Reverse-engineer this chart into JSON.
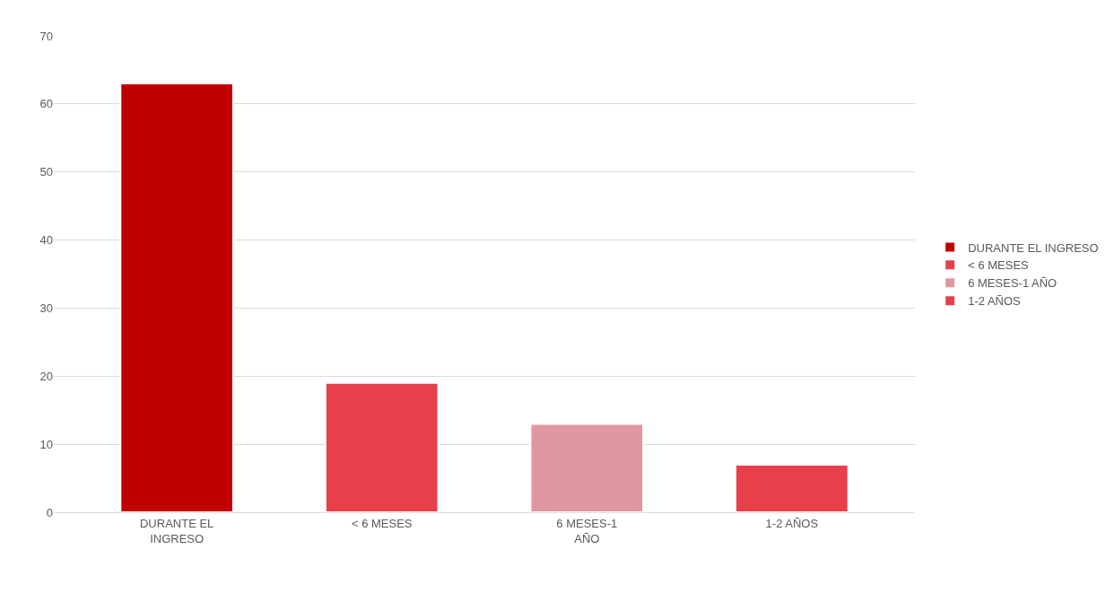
{
  "chart_data": {
    "type": "bar",
    "categories": [
      "DURANTE EL INGRESO",
      "< 6 MESES",
      "6 MESES-1 AÑO",
      "1-2 AÑOS"
    ],
    "stacked": true,
    "series": [
      {
        "name": "DURANTE EL INGRESO",
        "color": "#c00000",
        "values": [
          63,
          null,
          null,
          null
        ]
      },
      {
        "name": "< 6 MESES",
        "color": "#e8404a",
        "values": [
          null,
          19,
          null,
          null
        ]
      },
      {
        "name": "6 MESES-1 AÑO",
        "color": "#e0979f",
        "values": [
          null,
          null,
          13,
          null
        ]
      },
      {
        "name": "1-2 AÑOS",
        "color": "#e8404a",
        "values": [
          null,
          null,
          null,
          7
        ]
      }
    ],
    "ylim": [
      0,
      70
    ],
    "yticks": [
      0,
      10,
      20,
      30,
      40,
      50,
      60,
      70
    ],
    "grid": "y",
    "legend": "right"
  }
}
